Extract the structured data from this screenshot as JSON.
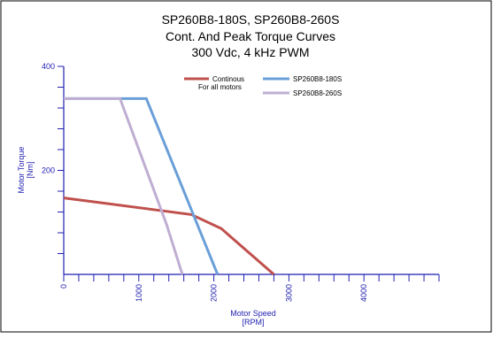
{
  "chart_data": {
    "type": "line",
    "title_lines": [
      "SP260B8-180S, SP260B8-260S",
      "Cont. And Peak Torque Curves",
      "300 Vdc, 4 kHz PWM"
    ],
    "xlabel_lines": [
      "Motor Speed",
      "[RPM]"
    ],
    "ylabel_lines": [
      "Motor Torque",
      "[Nm]"
    ],
    "xlim": [
      0,
      5000
    ],
    "ylim": [
      0,
      400
    ],
    "x_tick_labels": [
      {
        "value": 0,
        "label": "0"
      },
      {
        "value": 1000,
        "label": "1000"
      },
      {
        "value": 2000,
        "label": "2000"
      },
      {
        "value": 3000,
        "label": "3000"
      },
      {
        "value": 4000,
        "label": "4000"
      }
    ],
    "y_tick_labels": [
      {
        "value": 200,
        "label": "200"
      },
      {
        "value": 400,
        "label": "400"
      }
    ],
    "x_minor_step": 200,
    "y_minor_step": 40,
    "legend_position": "top-right",
    "series": [
      {
        "key": "continuous",
        "name": "Continous",
        "name_line2": "For all motors",
        "color": "#c0504d",
        "points": [
          [
            0,
            147
          ],
          [
            1700,
            115
          ],
          [
            2100,
            88
          ],
          [
            2800,
            0
          ]
        ]
      },
      {
        "key": "sp260b8-180s",
        "name": "SP260B8-180S",
        "color": "#6a9fd8",
        "points": [
          [
            0,
            338
          ],
          [
            1100,
            338
          ],
          [
            2050,
            0
          ]
        ]
      },
      {
        "key": "sp260b8-260s",
        "name": "SP260B8-260S",
        "color": "#bfaed2",
        "points": [
          [
            0,
            338
          ],
          [
            750,
            338
          ],
          [
            1370,
            96
          ],
          [
            1580,
            0
          ]
        ]
      }
    ]
  }
}
